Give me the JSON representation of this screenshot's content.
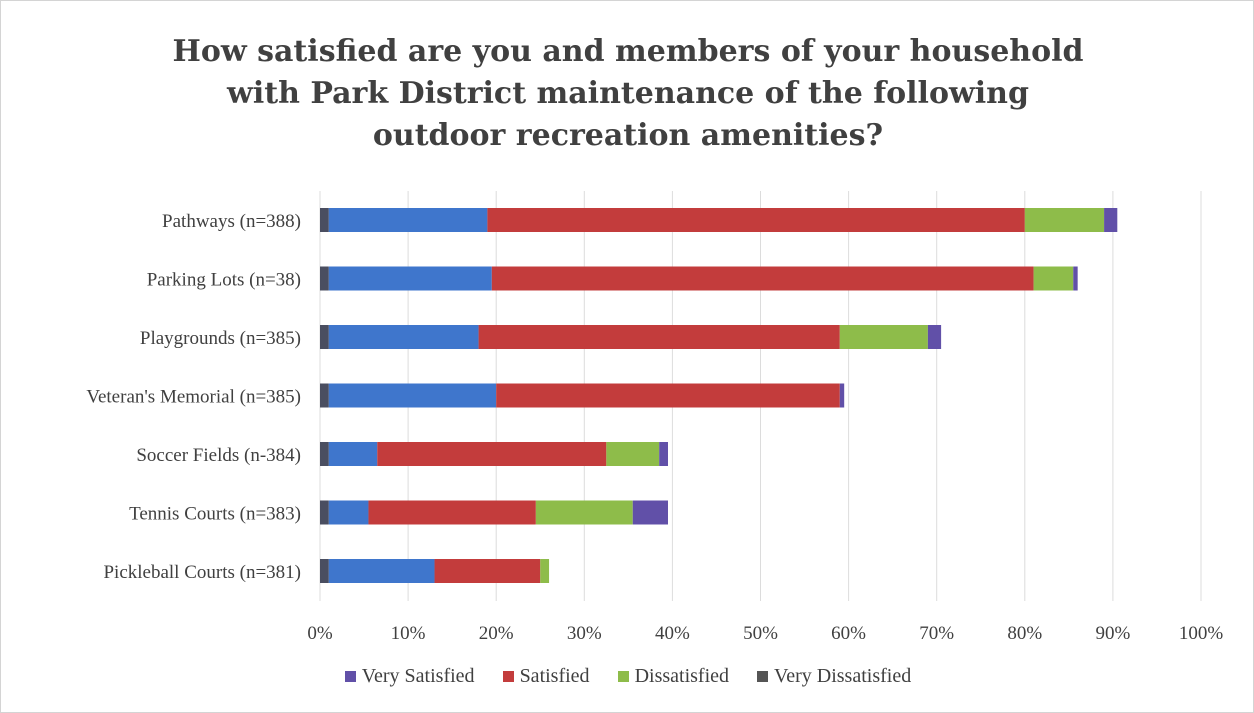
{
  "chart_data": {
    "type": "bar",
    "orientation": "horizontal",
    "stacked": true,
    "title": [
      "How satisfied are you and members of your household",
      "with Park District maintenance of the following",
      "outdoor recreation amenities?"
    ],
    "categories": [
      "Pathways (n=388)",
      "Parking Lots (n=38)",
      "Playgrounds (n=385)",
      "Veteran's Memorial (n=385)",
      "Soccer Fields (n-384)",
      "Tennis Courts (n=383)",
      "Pickleball Courts (n=381)"
    ],
    "series": [
      {
        "name": "Very Dissatisfied",
        "color": "#4a4e60",
        "values": [
          1,
          1,
          1,
          1,
          1,
          1,
          1
        ]
      },
      {
        "name": "Very Satisfied",
        "color": "#3f76cc",
        "values": [
          18,
          18.5,
          17,
          19,
          5.5,
          4.5,
          12
        ]
      },
      {
        "name": "Satisfied",
        "color": "#c33c3c",
        "values": [
          61,
          61.5,
          41,
          39,
          26,
          19,
          12
        ]
      },
      {
        "name": "Dissatisfied",
        "color": "#8ebc4a",
        "values": [
          9,
          4.5,
          10,
          0,
          6,
          11,
          1
        ]
      },
      {
        "name": "Very Dissatisfied",
        "color": "#6150a8",
        "values": [
          1.5,
          0.5,
          1.5,
          0.5,
          1,
          4,
          0
        ]
      }
    ],
    "legend": [
      {
        "name": "Very Satisfied",
        "color": "#6150a8"
      },
      {
        "name": "Satisfied",
        "color": "#c33c3c"
      },
      {
        "name": "Dissatisfied",
        "color": "#8ebc4a"
      },
      {
        "name": "Very Dissatisfied",
        "color": "#555555"
      }
    ],
    "xlim": [
      0,
      100
    ],
    "xticks": [
      "0%",
      "10%",
      "20%",
      "30%",
      "40%",
      "50%",
      "60%",
      "70%",
      "80%",
      "90%",
      "100%"
    ],
    "grid": true,
    "legend_position": "bottom"
  }
}
